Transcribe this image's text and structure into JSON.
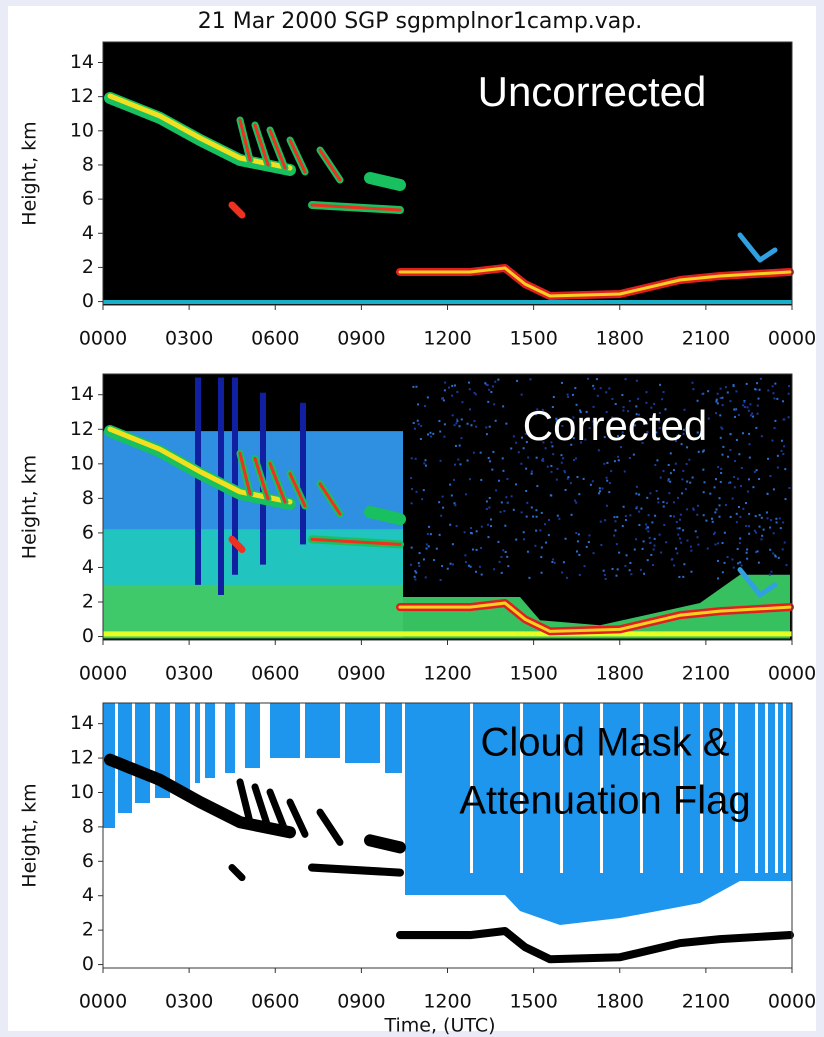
{
  "chart_data": [
    {
      "type": "lidar",
      "title": "21 Mar 2000  SGP sgpmplnor1camp.vap.",
      "label": "Uncorrected",
      "ylabel": "Height, km",
      "xlim": [
        0,
        24
      ],
      "xticks": [
        {
          "value": 0,
          "label": "0000"
        },
        {
          "value": 3,
          "label": "0300"
        },
        {
          "value": 6,
          "label": "0600"
        },
        {
          "value": 9,
          "label": "0900"
        },
        {
          "value": 12,
          "label": "1200"
        },
        {
          "value": 15,
          "label": "1500"
        },
        {
          "value": 18,
          "label": "1800"
        },
        {
          "value": 21,
          "label": "2100"
        },
        {
          "value": 24,
          "label": "0000"
        }
      ],
      "ylim": [
        -0.2,
        15.2
      ],
      "yticks": [
        0,
        2,
        4,
        6,
        8,
        10,
        12,
        14
      ]
    },
    {
      "type": "lidar",
      "label": "Corrected",
      "ylabel": "Height, km",
      "xlim": [
        0,
        24
      ],
      "xticks": [
        {
          "value": 0,
          "label": "0000"
        },
        {
          "value": 3,
          "label": "0300"
        },
        {
          "value": 6,
          "label": "0600"
        },
        {
          "value": 9,
          "label": "0900"
        },
        {
          "value": 12,
          "label": "1200"
        },
        {
          "value": 15,
          "label": "1500"
        },
        {
          "value": 18,
          "label": "1800"
        },
        {
          "value": 21,
          "label": "2100"
        },
        {
          "value": 24,
          "label": "0000"
        }
      ],
      "ylim": [
        -0.2,
        15.2
      ],
      "yticks": [
        0,
        2,
        4,
        6,
        8,
        10,
        12,
        14
      ]
    },
    {
      "type": "mask",
      "label": [
        "Cloud Mask &",
        "Attenuation Flag"
      ],
      "ylabel": "Height, km",
      "xlabel": "Time, (UTC)",
      "xlim": [
        0,
        24
      ],
      "xticks": [
        {
          "value": 0,
          "label": "0000"
        },
        {
          "value": 3,
          "label": "0300"
        },
        {
          "value": 6,
          "label": "0600"
        },
        {
          "value": 9,
          "label": "0900"
        },
        {
          "value": 12,
          "label": "1200"
        },
        {
          "value": 15,
          "label": "1500"
        },
        {
          "value": 18,
          "label": "1800"
        },
        {
          "value": 21,
          "label": "2100"
        },
        {
          "value": 24,
          "label": "0000"
        }
      ],
      "ylim": [
        -0.2,
        15.2
      ],
      "yticks": [
        0,
        2,
        4,
        6,
        8,
        10,
        12,
        14
      ]
    }
  ]
}
